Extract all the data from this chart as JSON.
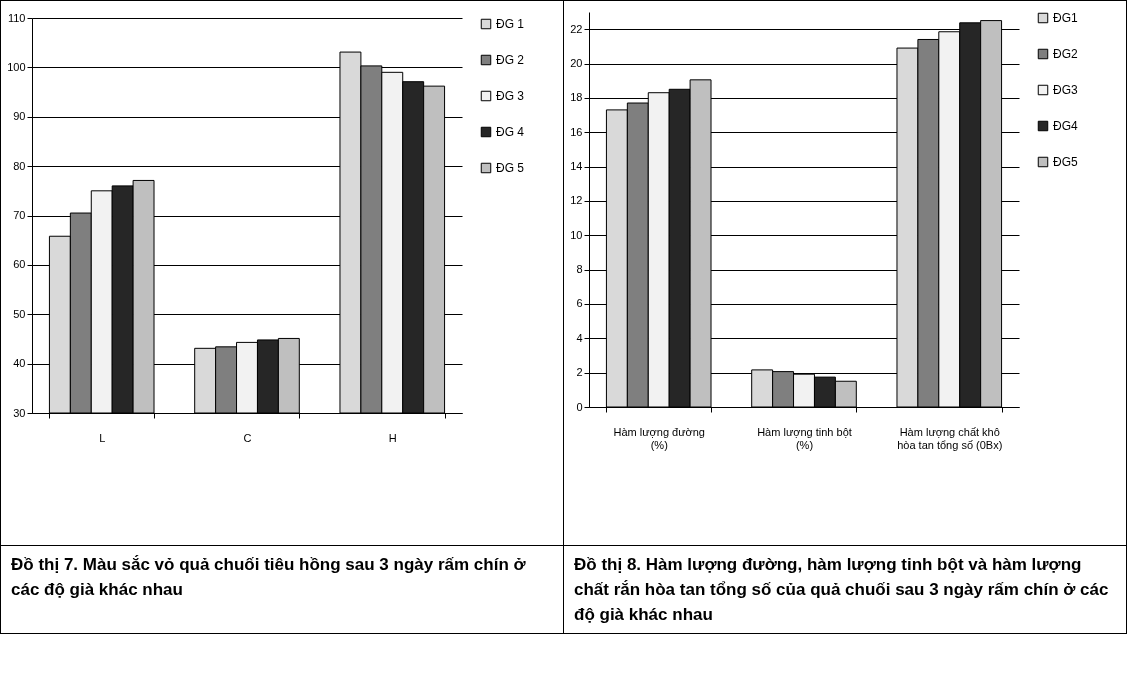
{
  "chart_data": [
    {
      "type": "bar",
      "categories": [
        "L",
        "C",
        "H"
      ],
      "ylim": [
        30,
        110
      ],
      "yticks": [
        30,
        40,
        50,
        60,
        70,
        80,
        90,
        100,
        110
      ],
      "grid": "y",
      "legend": "right",
      "annotations": [
        "Đồ thị 7. Màu sắc vỏ quả chuối tiêu hồng sau 3 ngày rấm chín ở các độ già khác nhau"
      ],
      "series": [
        {
          "name": "ĐG 1",
          "color": "#d9d9d9",
          "values": [
            65.8,
            43.1,
            103.1
          ]
        },
        {
          "name": "ĐG 2",
          "color": "#7f7f7f",
          "values": [
            70.5,
            43.4,
            100.3
          ]
        },
        {
          "name": "ĐG 3",
          "color": "#f2f2f2",
          "values": [
            75.0,
            44.3,
            99.0
          ]
        },
        {
          "name": "ĐG 4",
          "color": "#262626",
          "values": [
            76.0,
            44.8,
            97.1
          ]
        },
        {
          "name": "ĐG 5",
          "color": "#bfbfbf",
          "values": [
            77.1,
            45.1,
            96.2
          ]
        }
      ]
    },
    {
      "type": "bar",
      "categories": [
        "Hàm lượng đường\n(%)",
        "Hàm lượng tinh bột\n(%)",
        "Hàm lượng chất khô\nhòa tan tổng số (0Bx)"
      ],
      "ylim": [
        0,
        23
      ],
      "yticks": [
        0,
        2,
        4,
        6,
        8,
        10,
        12,
        14,
        16,
        18,
        20,
        22
      ],
      "grid": "y",
      "legend": "right",
      "annotations": [
        "Đồ thị 8. Hàm lượng đường, hàm lượng tinh bột và hàm lượng chất rắn hòa tan tổng số của quả chuối sau 3 ngày rấm chín ở các độ già khác nhau"
      ],
      "series": [
        {
          "name": "ĐG1",
          "color": "#d9d9d9",
          "values": [
            17.3,
            2.16,
            20.9
          ]
        },
        {
          "name": "ĐG2",
          "color": "#7f7f7f",
          "values": [
            17.7,
            2.06,
            21.4
          ]
        },
        {
          "name": "ĐG3",
          "color": "#f2f2f2",
          "values": [
            18.3,
            1.91,
            21.85
          ]
        },
        {
          "name": "ĐG4",
          "color": "#262626",
          "values": [
            18.5,
            1.74,
            22.37
          ]
        },
        {
          "name": "ĐG5",
          "color": "#bfbfbf",
          "values": [
            19.05,
            1.5,
            22.5
          ]
        }
      ]
    }
  ]
}
